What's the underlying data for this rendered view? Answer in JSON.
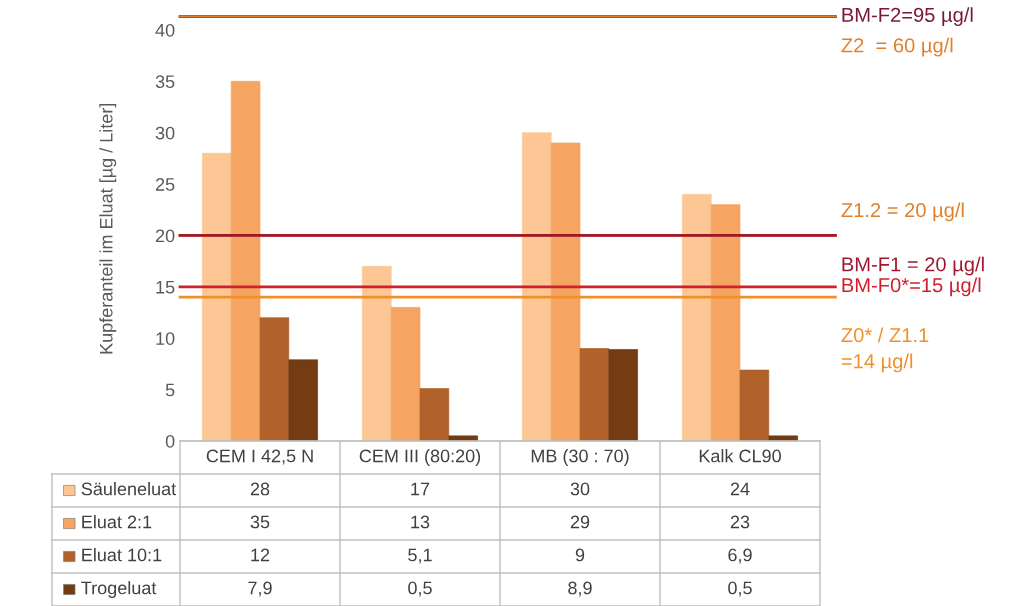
{
  "chart_data": {
    "type": "bar",
    "ylabel": "Kupferanteil im Eluat [µg / Liter]",
    "categories": [
      "CEM I 42,5 N",
      "CEM III (80:20)",
      "MB (30 : 70)",
      "Kalk CL90"
    ],
    "series": [
      {
        "name": "Säuleneluat",
        "color": "#fcc795",
        "values": [
          28,
          17,
          30,
          24
        ]
      },
      {
        "name": "Eluat 2:1",
        "color": "#f5a561",
        "values": [
          35,
          13,
          29,
          23
        ]
      },
      {
        "name": "Eluat 10:1",
        "color": "#b0622a",
        "values": [
          12,
          5.1,
          9,
          6.9
        ]
      },
      {
        "name": "Trogeluat",
        "color": "#733c12",
        "values": [
          7.9,
          0.5,
          8.9,
          0.5
        ]
      }
    ],
    "value_labels": [
      [
        "28",
        "17",
        "30",
        "24"
      ],
      [
        "35",
        "13",
        "29",
        "23"
      ],
      [
        "12",
        "5,1",
        "9",
        "6,9"
      ],
      [
        "7,9",
        "0,5",
        "8,9",
        "0,5"
      ]
    ],
    "ylim": [
      0,
      41.3
    ],
    "yticks": [
      0,
      5,
      10,
      15,
      20,
      25,
      30,
      35,
      40
    ],
    "ref_lines": [
      {
        "axis": "y",
        "value": 20,
        "label": "Z1.2 = 20 µg/l",
        "color": "#e0802a"
      },
      {
        "axis": "y",
        "value": 20,
        "label": "BM-F1 = 20 µg/l",
        "color": "#a0182e"
      },
      {
        "axis": "y",
        "value": 15,
        "label": "BM-F0*=15 µg/l",
        "color": "#d0202c"
      },
      {
        "axis": "y",
        "value": 14,
        "label": "Z0* / Z1.1\n=14 µg/l",
        "color": "#f0902a"
      }
    ],
    "annotations": [
      "BM-F2=95 µg/l",
      "Z2  = 60 µg/l"
    ],
    "legend": "bottom"
  }
}
